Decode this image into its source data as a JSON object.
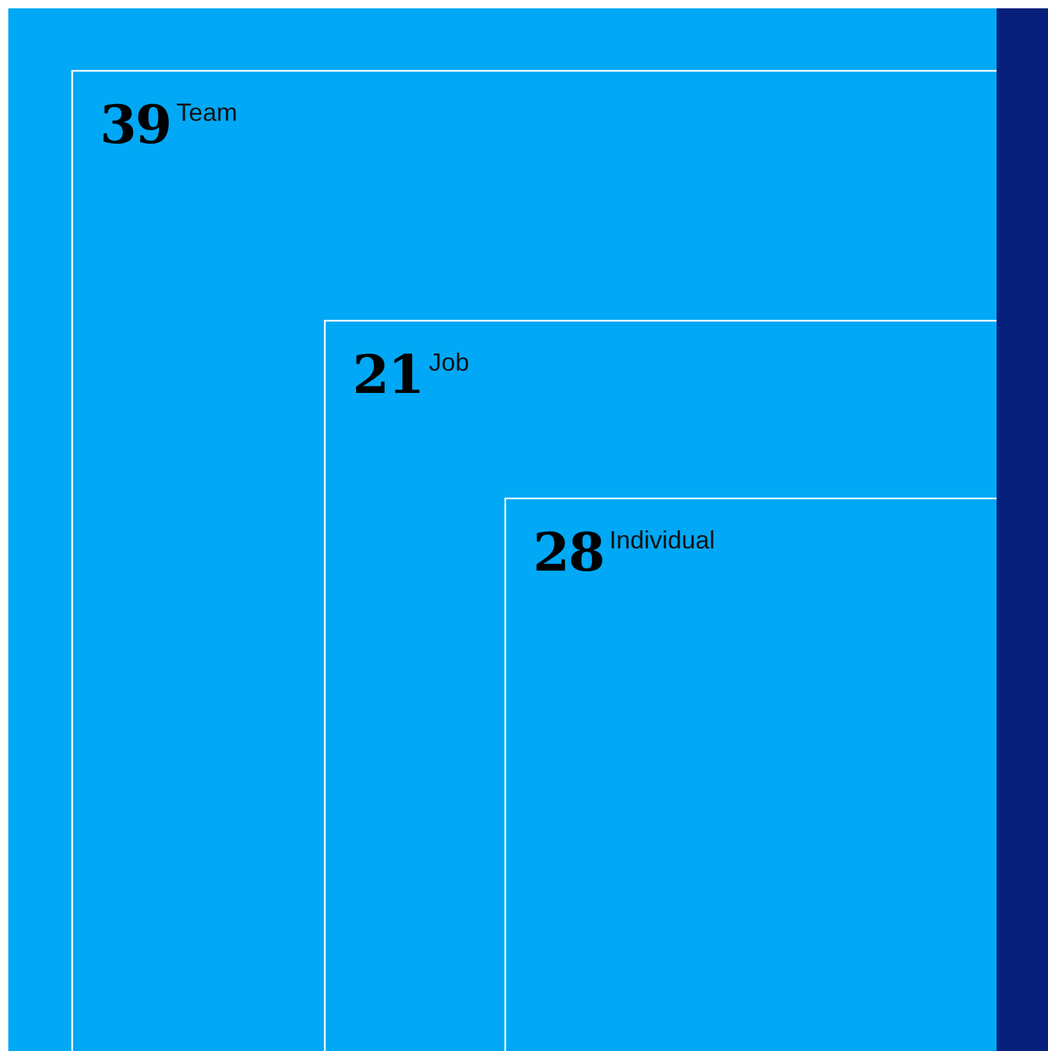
{
  "chart_data": {
    "type": "other",
    "categories": [
      "Team",
      "Job",
      "Individual"
    ],
    "values": [
      39,
      21,
      28
    ],
    "color": "#00a8f5",
    "data_labels": true
  }
}
